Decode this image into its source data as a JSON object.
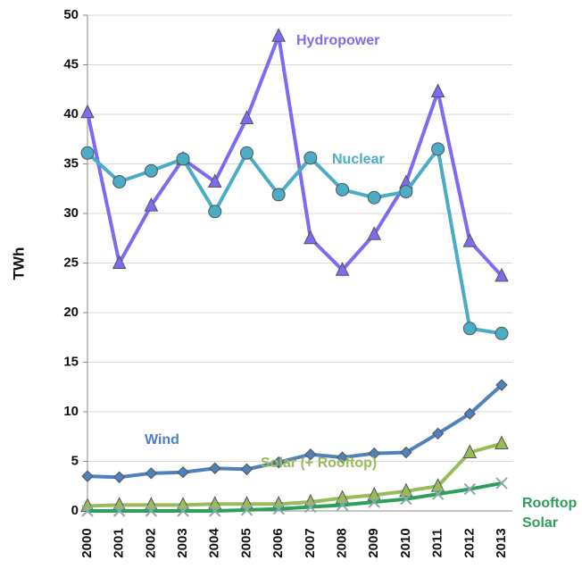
{
  "chart_data": {
    "type": "line",
    "y_label": "TWh",
    "categories": [
      "2000",
      "2001",
      "2002",
      "2003",
      "2004",
      "2005",
      "2006",
      "2007",
      "2008",
      "2009",
      "2010",
      "2011",
      "2012",
      "2013"
    ],
    "ylim": [
      0,
      50
    ],
    "yticks": [
      0,
      5,
      10,
      15,
      20,
      25,
      30,
      35,
      40,
      45,
      50
    ],
    "grid": true,
    "series": [
      {
        "name": "Hydropower",
        "color": "#7b6cf2",
        "marker": "triangle",
        "values": [
          40.2,
          25.0,
          30.8,
          35.5,
          33.2,
          39.6,
          47.9,
          27.5,
          24.3,
          27.9,
          33.1,
          42.3,
          27.2,
          23.7
        ]
      },
      {
        "name": "Nuclear",
        "color": "#4bacc6",
        "marker": "circle",
        "values": [
          36.1,
          33.2,
          34.3,
          35.5,
          30.2,
          36.1,
          31.9,
          35.6,
          32.4,
          31.6,
          32.2,
          36.5,
          18.4,
          17.9
        ]
      },
      {
        "name": "Wind",
        "color": "#4f81bd",
        "marker": "diamond",
        "values": [
          3.5,
          3.4,
          3.8,
          3.9,
          4.3,
          4.2,
          4.9,
          5.7,
          5.4,
          5.8,
          5.9,
          7.8,
          9.8,
          12.7
        ]
      },
      {
        "name": "Solar (+ Rooftop)",
        "color": "#9bbb59",
        "marker": "triangle",
        "values": [
          0.5,
          0.6,
          0.6,
          0.6,
          0.7,
          0.7,
          0.7,
          0.9,
          1.3,
          1.6,
          2.0,
          2.5,
          5.9,
          6.8
        ]
      },
      {
        "name": "Rooftop Solar",
        "color": "#2e9e5b",
        "marker": "x",
        "values": [
          0,
          0,
          0,
          0,
          0,
          0.1,
          0.2,
          0.4,
          0.6,
          0.9,
          1.2,
          1.7,
          2.2,
          2.8
        ]
      }
    ]
  }
}
